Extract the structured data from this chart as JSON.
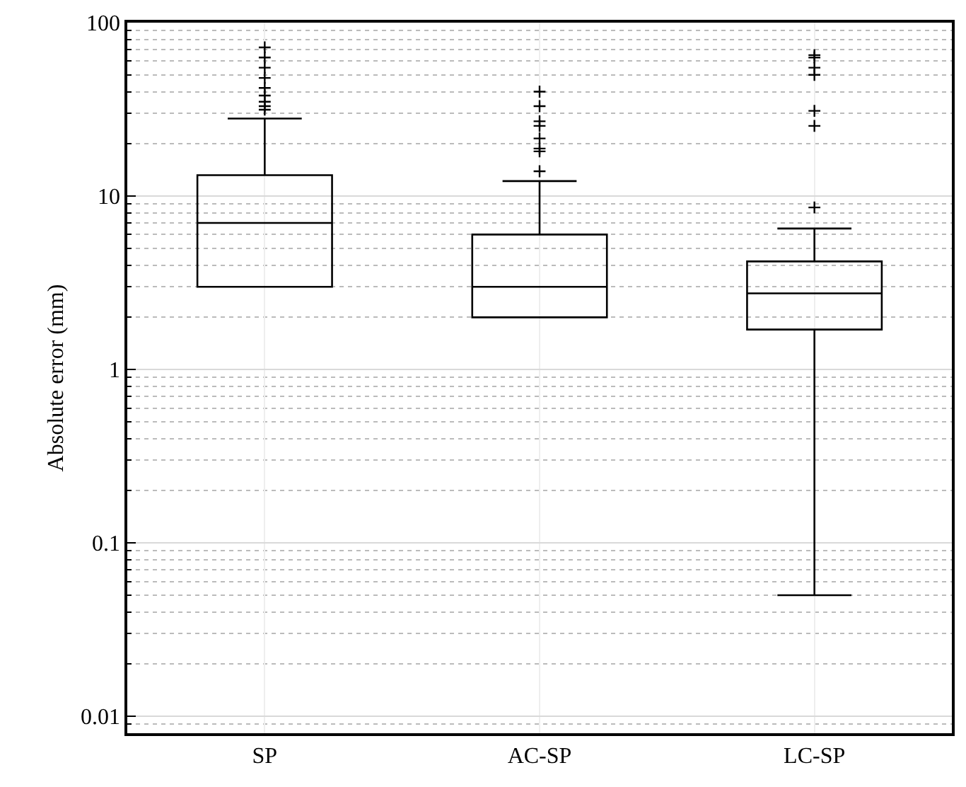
{
  "chart_data": {
    "type": "box",
    "ylabel": "Absolute error (mm)",
    "categories": [
      "SP",
      "AC-SP",
      "LC-SP"
    ],
    "boxes": [
      {
        "low": 3,
        "q1": 3,
        "median": 7,
        "q3": 13.2,
        "high": 28,
        "outliers": [
          31.5,
          33,
          35,
          38,
          42,
          48,
          55,
          63,
          72
        ]
      },
      {
        "low": 2,
        "q1": 2,
        "median": 3,
        "q3": 6,
        "high": 12.2,
        "outliers": [
          13.9,
          18.1,
          18.8,
          21.5,
          25.4,
          27,
          33,
          40
        ]
      },
      {
        "low": 0.05,
        "q1": 1.7,
        "median": 2.75,
        "q3": 4.2,
        "high": 6.5,
        "outliers": [
          8.6,
          25.4,
          31,
          50,
          55,
          63,
          65
        ]
      }
    ],
    "color": "#000000",
    "log": true,
    "ylim": [
      0.008,
      100
    ],
    "yticks": [
      0.01,
      0.1,
      1,
      10,
      100
    ],
    "grid": true,
    "marker": "cross"
  }
}
